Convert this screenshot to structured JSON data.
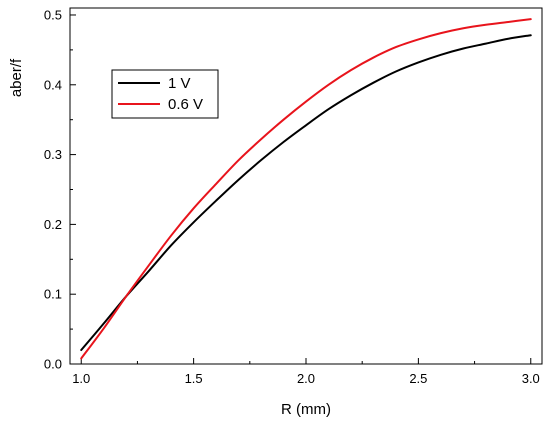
{
  "chart_data": {
    "type": "line",
    "title": "",
    "xlabel": "R (mm)",
    "ylabel": "aber/f",
    "xlim": [
      0.95,
      3.05
    ],
    "ylim": [
      0.0,
      0.51
    ],
    "xticks": [
      1.0,
      1.5,
      2.0,
      2.5,
      3.0
    ],
    "xtick_labels": [
      "1.0",
      "1.5",
      "2.0",
      "2.5",
      "3.0"
    ],
    "yticks": [
      0.0,
      0.1,
      0.2,
      0.3,
      0.4,
      0.5
    ],
    "ytick_labels": [
      "0.0",
      "0.1",
      "0.2",
      "0.3",
      "0.4",
      "0.5"
    ],
    "grid": false,
    "legend_position": "upper-left",
    "series": [
      {
        "name": "1 V",
        "color": "#000000",
        "x": [
          1.0,
          1.1,
          1.2,
          1.3,
          1.4,
          1.5,
          1.6,
          1.7,
          1.8,
          1.9,
          2.0,
          2.1,
          2.2,
          2.3,
          2.4,
          2.5,
          2.6,
          2.7,
          2.8,
          2.9,
          3.0
        ],
        "y": [
          0.02,
          0.058,
          0.097,
          0.133,
          0.17,
          0.203,
          0.234,
          0.264,
          0.292,
          0.318,
          0.342,
          0.365,
          0.385,
          0.403,
          0.419,
          0.432,
          0.443,
          0.452,
          0.459,
          0.466,
          0.471
        ]
      },
      {
        "name": "0.6 V",
        "color": "#e8141c",
        "x": [
          1.0,
          1.1,
          1.2,
          1.3,
          1.4,
          1.5,
          1.6,
          1.7,
          1.8,
          1.9,
          2.0,
          2.1,
          2.2,
          2.3,
          2.4,
          2.5,
          2.6,
          2.7,
          2.8,
          2.9,
          3.0
        ],
        "y": [
          0.008,
          0.051,
          0.097,
          0.141,
          0.184,
          0.223,
          0.258,
          0.292,
          0.322,
          0.35,
          0.376,
          0.4,
          0.421,
          0.439,
          0.454,
          0.465,
          0.474,
          0.481,
          0.486,
          0.49,
          0.494
        ]
      }
    ]
  }
}
